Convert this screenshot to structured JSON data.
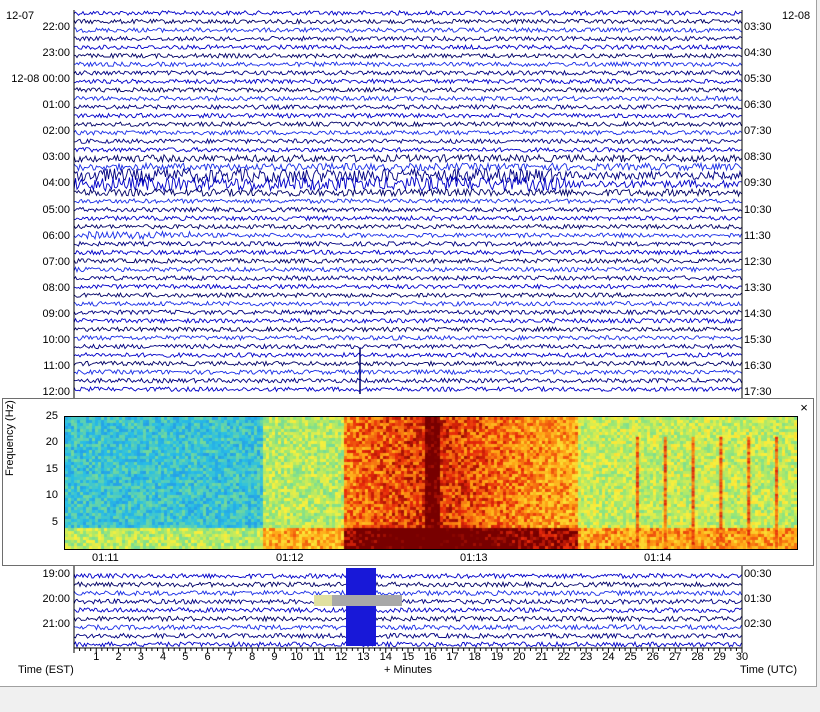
{
  "helicorder": {
    "date_left": "12-07",
    "date_right": "12-08",
    "left_times": [
      "22:00",
      "23:00",
      "12-08 00:00",
      "01:00",
      "02:00",
      "03:00",
      "04:00",
      "05:00",
      "06:00",
      "07:00",
      "08:00",
      "09:00",
      "10:00",
      "11:00",
      "12:00",
      "19:00",
      "20:00",
      "21:00"
    ],
    "right_times": [
      "03:30",
      "04:30",
      "05:30",
      "06:30",
      "07:30",
      "08:30",
      "09:30",
      "10:30",
      "11:30",
      "12:30",
      "13:30",
      "14:30",
      "15:30",
      "16:30",
      "17:30",
      "00:30",
      "01:30",
      "02:30"
    ],
    "x_ticks": [
      "1",
      "2",
      "3",
      "4",
      "5",
      "6",
      "7",
      "8",
      "9",
      "10",
      "11",
      "12",
      "13",
      "14",
      "15",
      "16",
      "17",
      "18",
      "19",
      "20",
      "21",
      "22",
      "23",
      "24",
      "25",
      "26",
      "27",
      "28",
      "29",
      "30"
    ],
    "x_axis_left": "Time (EST)",
    "x_axis_center": "+ Minutes",
    "x_axis_right": "Time (UTC)",
    "trace_colors": [
      "#0000c8",
      "#000066",
      "#1a2ee6",
      "#000080"
    ]
  },
  "spectrogram": {
    "ylabel": "Frequency (Hz)",
    "y_ticks": [
      "25",
      "20",
      "15",
      "10",
      "5"
    ],
    "x_ticks": [
      "01:11",
      "01:12",
      "01:13",
      "01:14"
    ],
    "close_label": "×"
  }
}
